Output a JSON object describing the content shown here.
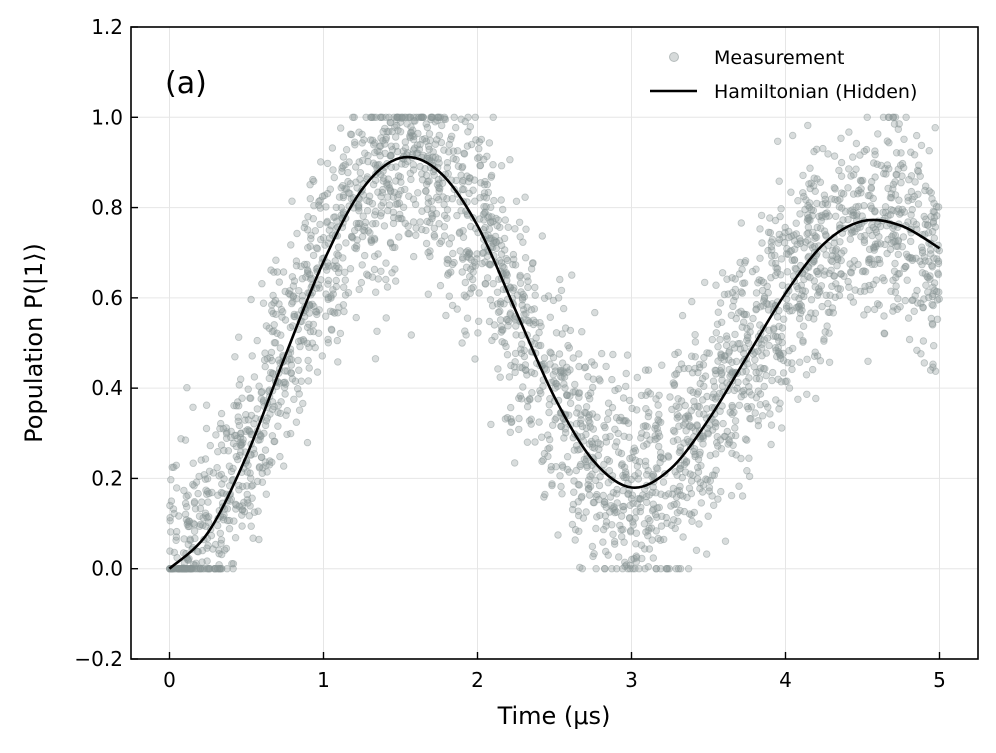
{
  "chart_data": {
    "type": "scatter",
    "panel_label": "(a)",
    "xlabel": "Time (μs)",
    "ylabel": "Population P(|1⟩)",
    "xlim": [
      -0.25,
      5.25
    ],
    "ylim": [
      -0.2,
      1.2
    ],
    "xticks": [
      0,
      1,
      2,
      3,
      4,
      5
    ],
    "yticks": [
      -0.2,
      0.0,
      0.2,
      0.4,
      0.6,
      0.8,
      1.0,
      1.2
    ],
    "xtick_labels": [
      "0",
      "1",
      "2",
      "3",
      "4",
      "5"
    ],
    "ytick_labels": [
      "−0.2",
      "0.0",
      "0.2",
      "0.4",
      "0.6",
      "0.8",
      "1.0",
      "1.2"
    ],
    "grid": true,
    "legend_position": "top-right",
    "series": [
      {
        "name": "Measurement",
        "kind": "scatter",
        "color": "#8a9596",
        "n_points": 3000,
        "noise_std": 0.12,
        "clip": [
          0.0,
          1.0
        ],
        "x_range": [
          0,
          5
        ]
      },
      {
        "name": "Hamiltonian (Hidden)",
        "kind": "line",
        "color": "#000000",
        "x": [
          0,
          0.25,
          0.5,
          0.75,
          1.0,
          1.25,
          1.5,
          1.75,
          2.0,
          2.25,
          2.5,
          2.75,
          3.0,
          3.25,
          3.5,
          3.75,
          4.0,
          4.25,
          4.5,
          4.75,
          5.0
        ],
        "y": [
          0.0,
          0.08,
          0.25,
          0.47,
          0.68,
          0.84,
          0.91,
          0.88,
          0.76,
          0.57,
          0.38,
          0.24,
          0.18,
          0.22,
          0.33,
          0.47,
          0.61,
          0.72,
          0.77,
          0.76,
          0.71
        ]
      }
    ]
  }
}
